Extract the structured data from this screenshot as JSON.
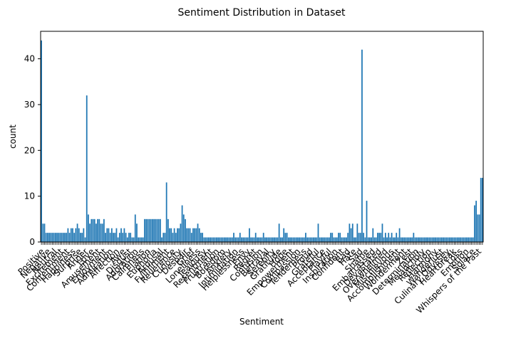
{
  "chart_data": {
    "type": "bar",
    "title": "Sentiment Distribution in Dataset",
    "xlabel": "Sentiment",
    "ylabel": "count",
    "ylim": [
      0,
      46
    ],
    "yticks": [
      0,
      10,
      20,
      30,
      40
    ],
    "bar_color": "#1f77b4",
    "grid": false,
    "legend": "none",
    "values": [
      44,
      4,
      4,
      2,
      2,
      2,
      2,
      2,
      2,
      2,
      2,
      2,
      2,
      2,
      2,
      2,
      2,
      3,
      2,
      3,
      3,
      2,
      3,
      4,
      3,
      2,
      2,
      3,
      1,
      32,
      6,
      4,
      5,
      5,
      5,
      4,
      5,
      5,
      4,
      4,
      5,
      2,
      3,
      3,
      2,
      3,
      2,
      2,
      3,
      1,
      2,
      3,
      2,
      3,
      2,
      1,
      2,
      2,
      1,
      1,
      6,
      4,
      1,
      1,
      1,
      1,
      5,
      5,
      5,
      5,
      5,
      5,
      5,
      5,
      5,
      5,
      5,
      1,
      2,
      2,
      13,
      5,
      3,
      3,
      2,
      3,
      2,
      3,
      3,
      4,
      8,
      6,
      5,
      3,
      3,
      3,
      2,
      3,
      3,
      3,
      4,
      3,
      2,
      2,
      1,
      1,
      1,
      1,
      1,
      1,
      1,
      1,
      1,
      1,
      1,
      1,
      1,
      1,
      1,
      1,
      1,
      1,
      1,
      2,
      1,
      1,
      1,
      2,
      1,
      1,
      1,
      1,
      1,
      3,
      1,
      1,
      1,
      2,
      1,
      1,
      1,
      1,
      2,
      1,
      1,
      1,
      1,
      1,
      1,
      1,
      1,
      1,
      4,
      1,
      1,
      3,
      2,
      2,
      1,
      1,
      1,
      1,
      1,
      1,
      1,
      1,
      1,
      1,
      1,
      2,
      1,
      1,
      1,
      1,
      1,
      1,
      1,
      4,
      1,
      1,
      1,
      1,
      1,
      1,
      1,
      2,
      2,
      1,
      1,
      1,
      2,
      2,
      1,
      1,
      1,
      1,
      2,
      4,
      3,
      4,
      1,
      1,
      4,
      2,
      2,
      42,
      2,
      1,
      9,
      1,
      1,
      1,
      3,
      1,
      1,
      2,
      2,
      2,
      4,
      1,
      2,
      1,
      2,
      1,
      2,
      1,
      1,
      2,
      1,
      3,
      1,
      1,
      1,
      1,
      1,
      1,
      1,
      1,
      2,
      1,
      1,
      1,
      1,
      1,
      1,
      1,
      1,
      1,
      1,
      1,
      1,
      1,
      1,
      1,
      1,
      1,
      1,
      1,
      1,
      1,
      1,
      1,
      1,
      1,
      1,
      1,
      1,
      1,
      1,
      1,
      1,
      1,
      1,
      1,
      1,
      1,
      1,
      8,
      9,
      6,
      6,
      14,
      14
    ]
  },
  "chart_labels": [
    {
      "text": "Positive"
    },
    {
      "text": "Negative"
    },
    {
      "text": "Neutral"
    },
    {
      "text": "Excitement"
    },
    {
      "text": "Contentment"
    },
    {
      "text": "Happiness"
    },
    {
      "text": "Surprise"
    },
    {
      "text": "Anger"
    },
    {
      "text": "Love"
    },
    {
      "text": "Amusement"
    },
    {
      "text": "Enjoyment"
    },
    {
      "text": "Admiration"
    },
    {
      "text": "Affection"
    },
    {
      "text": "Awe"
    },
    {
      "text": "Disgust"
    },
    {
      "text": "Adoration"
    },
    {
      "text": "Calmness"
    },
    {
      "text": "Elation"
    },
    {
      "text": "Euphoria"
    },
    {
      "text": "Arousal"
    },
    {
      "text": "Fulfillment"
    },
    {
      "text": "Reverence"
    },
    {
      "text": "Curiosity"
    },
    {
      "text": "Despair"
    },
    {
      "text": "Grief"
    },
    {
      "text": "Loneliness"
    },
    {
      "text": "Jealousy"
    },
    {
      "text": "Resentment"
    },
    {
      "text": "Frustration"
    },
    {
      "text": "Boredom"
    },
    {
      "text": "Anxiety"
    },
    {
      "text": "Intimidation"
    },
    {
      "text": "Helplessness"
    },
    {
      "text": "Envy"
    },
    {
      "text": "Regret"
    },
    {
      "text": "Confusion"
    },
    {
      "text": "Betrayal"
    },
    {
      "text": "Serenity"
    },
    {
      "text": "Gratitude"
    },
    {
      "text": "Hope"
    },
    {
      "text": "Empowerment"
    },
    {
      "text": "Compassion"
    },
    {
      "text": "Tenderness"
    },
    {
      "text": "Proud"
    },
    {
      "text": "Grateful"
    },
    {
      "text": "Acceptance"
    },
    {
      "text": "Playful"
    },
    {
      "text": "Inspiration"
    },
    {
      "text": "Confident"
    },
    {
      "text": "Bad"
    },
    {
      "text": "Hate"
    },
    {
      "text": "Sad"
    },
    {
      "text": "Shame"
    },
    {
      "text": "Embarrassed"
    },
    {
      "text": "Devastated"
    },
    {
      "text": "Overwhelmed"
    },
    {
      "text": "Mischievous"
    },
    {
      "text": "Accomplishment"
    },
    {
      "text": "Wonderment"
    },
    {
      "text": "Zest"
    },
    {
      "text": "Determination"
    },
    {
      "text": "Melancholy"
    },
    {
      "text": "Reflection"
    },
    {
      "text": "Harmony"
    },
    {
      "text": "Wanderlust"
    },
    {
      "text": "Culinary Odyssey"
    },
    {
      "text": "Heartbreak"
    },
    {
      "text": "Loss"
    },
    {
      "text": "Emotion"
    },
    {
      "text": "Solace"
    },
    {
      "text": "Whispers of the Past"
    }
  ]
}
